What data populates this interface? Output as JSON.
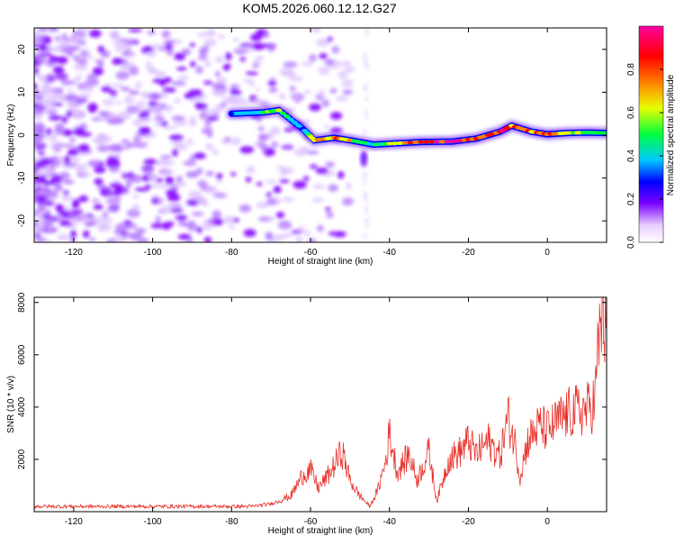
{
  "title": "KOM5.2026.060.12.12.G27",
  "chart_data": [
    {
      "type": "heatmap",
      "xlabel": "Height of straight line (km)",
      "ylabel": "Frequency (Hz)",
      "xlim": [
        -130,
        15
      ],
      "ylim": [
        -25,
        25
      ],
      "xticks": [
        -120,
        -100,
        -80,
        -60,
        -40,
        -20,
        0
      ],
      "yticks": [
        -20,
        -10,
        0,
        10,
        20
      ],
      "colorbar": {
        "label": "Normalized spectral amplitude",
        "range": [
          0,
          1
        ],
        "ticks": [
          "0.0",
          "0.2",
          "0.4",
          "0.6",
          "0.8"
        ]
      },
      "signal_track": [
        {
          "x": -80,
          "y": 5,
          "a": 0.3
        },
        {
          "x": -72,
          "y": 5.3,
          "a": 0.45
        },
        {
          "x": -68,
          "y": 5.8,
          "a": 0.55
        },
        {
          "x": -62,
          "y": 1.5,
          "a": 0.3
        },
        {
          "x": -59,
          "y": -1.2,
          "a": 0.65
        },
        {
          "x": -54,
          "y": -0.6,
          "a": 0.7
        },
        {
          "x": -50,
          "y": -1.2,
          "a": 0.6
        },
        {
          "x": -44,
          "y": -2.2,
          "a": 0.35
        },
        {
          "x": -40,
          "y": -2.0,
          "a": 0.55
        },
        {
          "x": -32,
          "y": -1.6,
          "a": 0.8
        },
        {
          "x": -24,
          "y": -1.5,
          "a": 0.9
        },
        {
          "x": -18,
          "y": -0.8,
          "a": 0.7
        },
        {
          "x": -12,
          "y": 0.8,
          "a": 0.85
        },
        {
          "x": -9,
          "y": 2.2,
          "a": 0.75
        },
        {
          "x": -4,
          "y": 0.8,
          "a": 0.7
        },
        {
          "x": 0,
          "y": 0.2,
          "a": 0.8
        },
        {
          "x": 5,
          "y": 0.5,
          "a": 0.55
        },
        {
          "x": 10,
          "y": 0.6,
          "a": 0.45
        },
        {
          "x": 15,
          "y": 0.5,
          "a": 0.5
        }
      ]
    },
    {
      "type": "line",
      "xlabel": "Height of straight line (km)",
      "ylabel": "SNR (10 * v/v)",
      "xlim": [
        -130,
        15
      ],
      "ylim": [
        0,
        8200
      ],
      "xticks": [
        -120,
        -100,
        -80,
        -60,
        -40,
        -20,
        0
      ],
      "yticks": [
        2000,
        4000,
        6000,
        8000
      ],
      "line_color": "#e8302a",
      "series": [
        {
          "x": [
            -130,
            -110,
            -90,
            -75,
            -70,
            -65,
            -62,
            -60,
            -58,
            -55,
            -52,
            -50,
            -48,
            -45,
            -43,
            -41,
            -40,
            -38,
            -35,
            -33,
            -30,
            -28,
            -25,
            -22,
            -20,
            -18,
            -15,
            -12,
            -10,
            -8,
            -7,
            -5,
            -2,
            0,
            3,
            6,
            10,
            12,
            13,
            14,
            15
          ],
          "y": [
            200,
            200,
            200,
            200,
            300,
            600,
            1400,
            1600,
            900,
            1500,
            2300,
            1200,
            700,
            200,
            800,
            1900,
            3000,
            1500,
            2200,
            1200,
            2300,
            400,
            2000,
            2300,
            2700,
            2200,
            2700,
            2100,
            3600,
            2500,
            1300,
            2700,
            3300,
            3100,
            3500,
            3800,
            3900,
            4200,
            6500,
            8000,
            6100
          ]
        }
      ]
    }
  ]
}
